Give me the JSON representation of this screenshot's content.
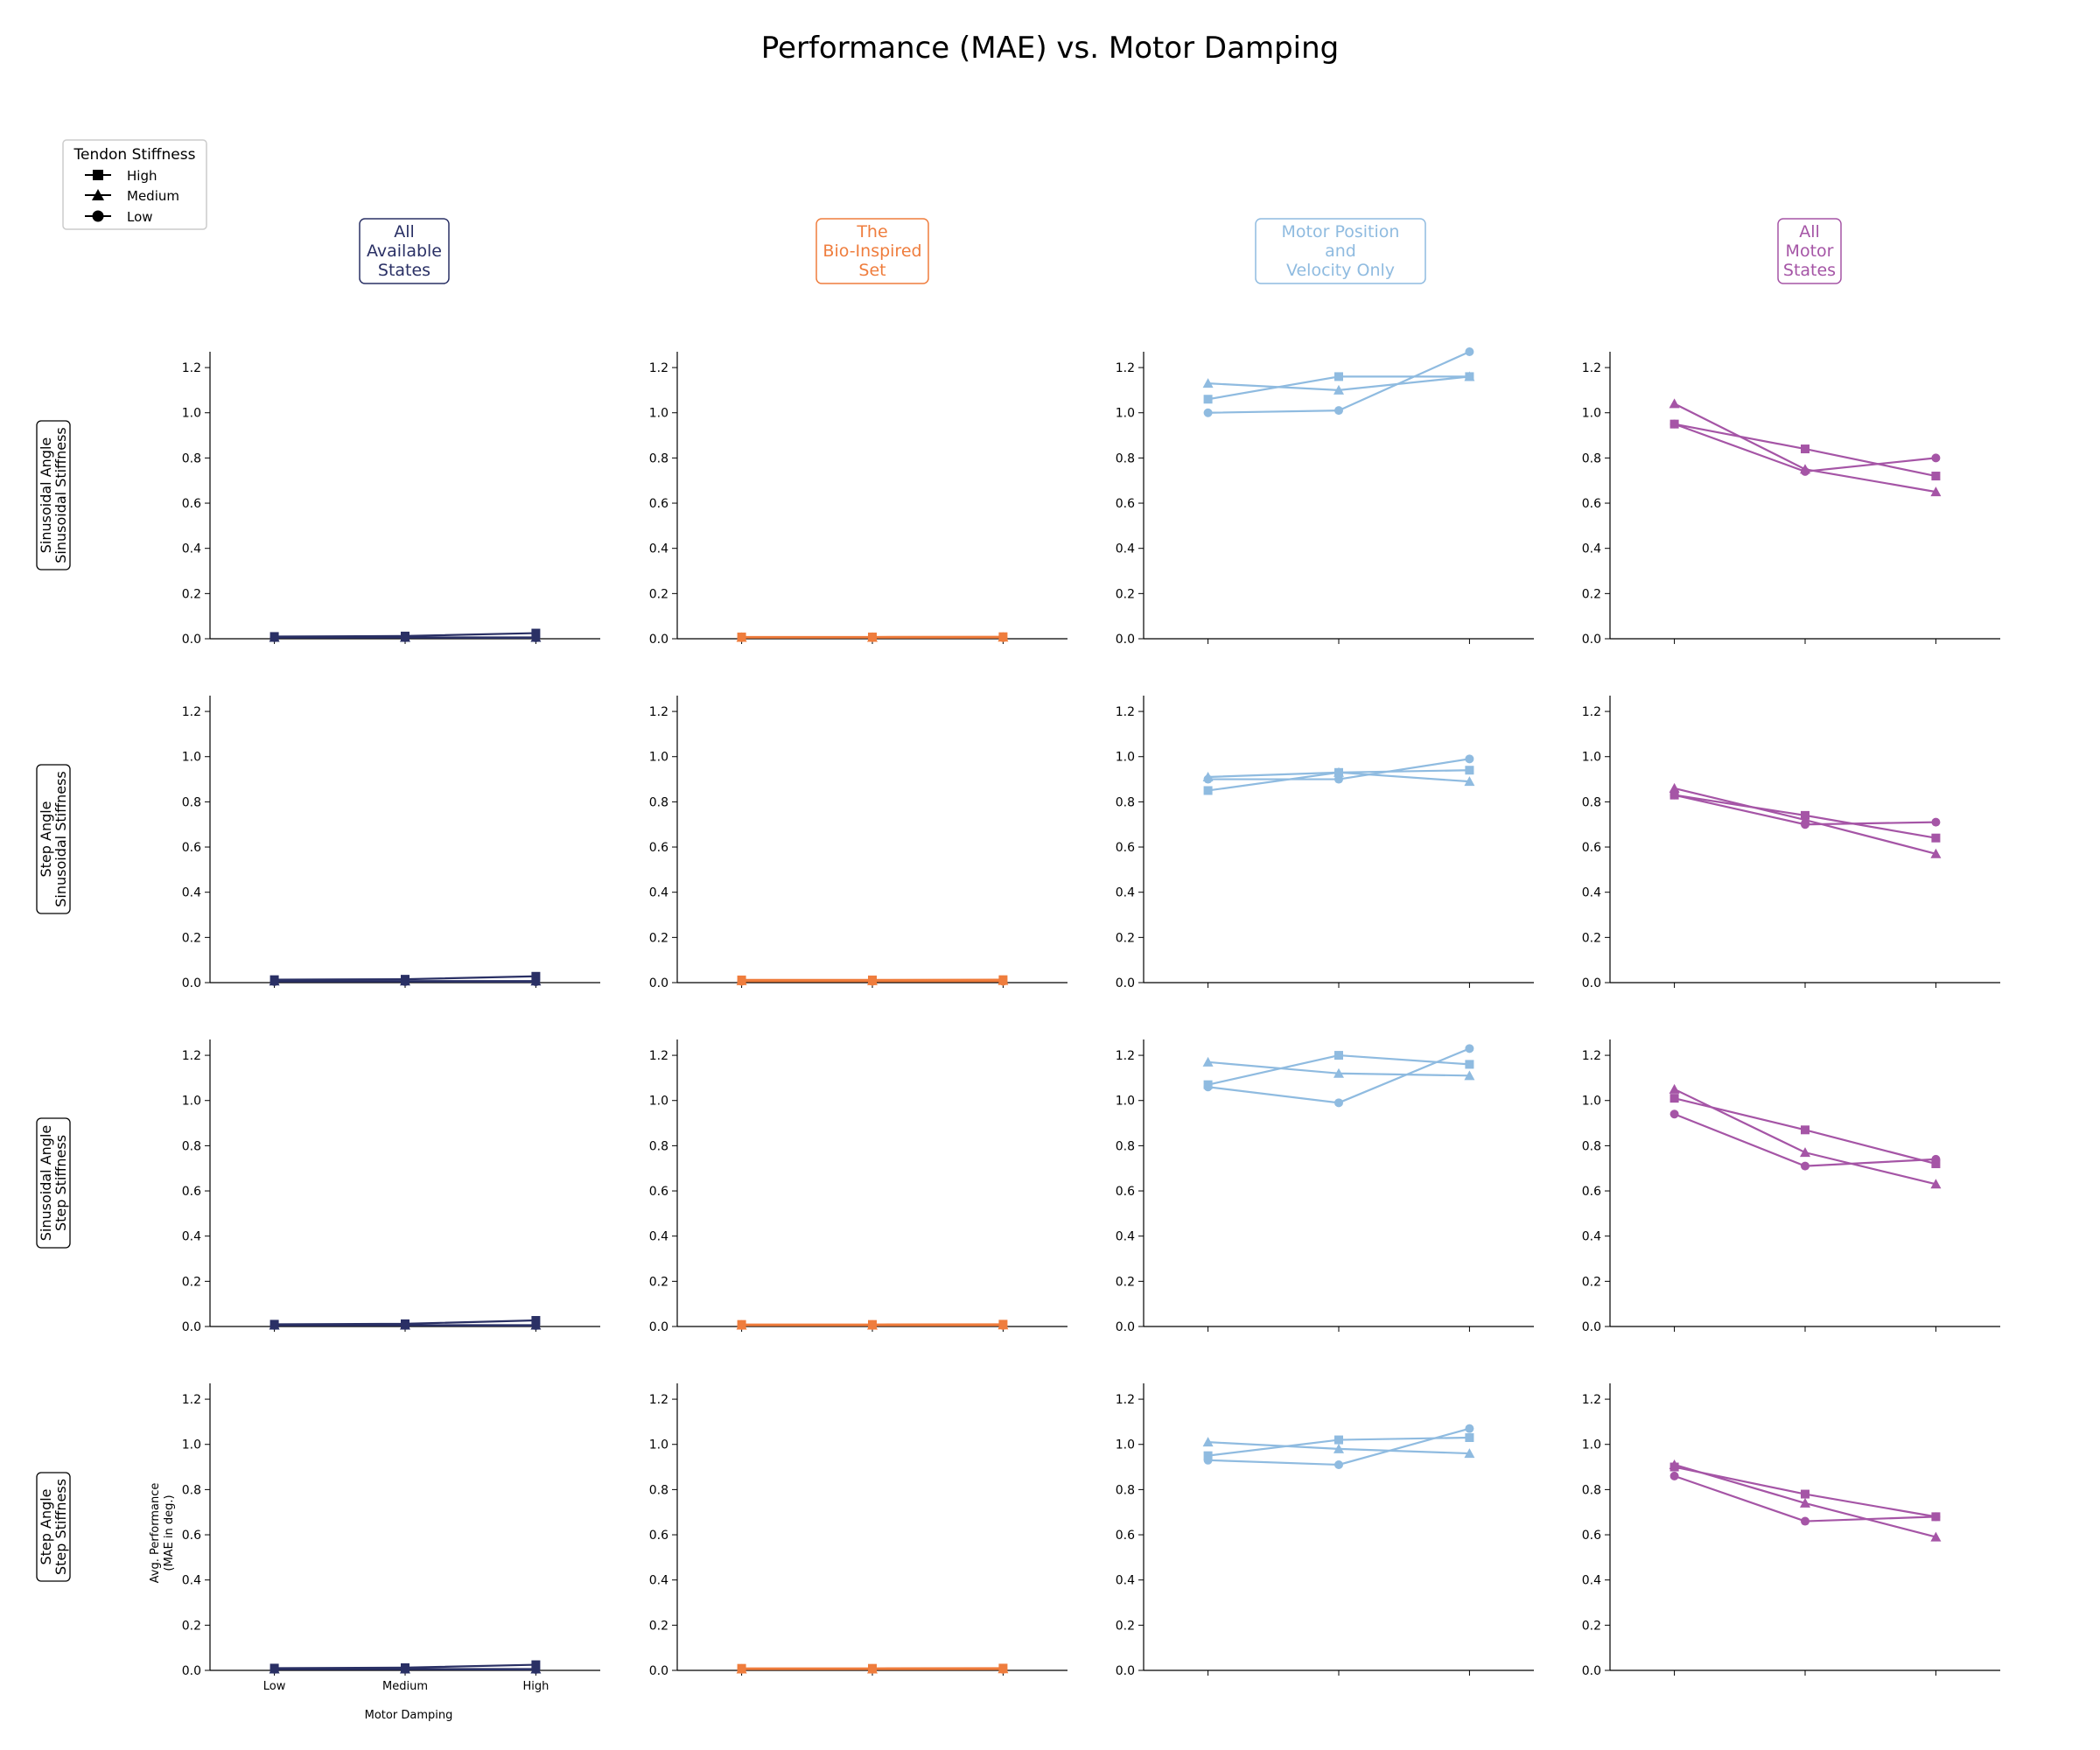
{
  "title": "Performance (MAE) vs. Motor Damping",
  "legend": {
    "title": "Tendon Stiffness",
    "items": [
      {
        "label": "High",
        "marker": "square"
      },
      {
        "label": "Medium",
        "marker": "triangle"
      },
      {
        "label": "Low",
        "marker": "circle"
      }
    ]
  },
  "column_headers": [
    {
      "lines": [
        "All",
        "Available",
        "States"
      ],
      "color": "#2a3065"
    },
    {
      "lines": [
        "The",
        "Bio-Inspired",
        "Set"
      ],
      "color": "#ef7d3d"
    },
    {
      "lines": [
        "Motor Position",
        "and",
        "Velocity Only"
      ],
      "color": "#8fbbe0"
    },
    {
      "lines": [
        "All",
        "Motor",
        "States"
      ],
      "color": "#a555a6"
    }
  ],
  "row_headers": [
    {
      "lines": [
        "Sinusoidal Angle",
        "Sinusoidal Stiffness"
      ]
    },
    {
      "lines": [
        "Step Angle",
        "Sinusoidal Stiffness"
      ]
    },
    {
      "lines": [
        "Sinusoidal Angle",
        "Step Stiffness"
      ]
    },
    {
      "lines": [
        "Step Angle",
        "Step Stiffness"
      ]
    }
  ],
  "axes_text": {
    "xlabel": "Motor Damping",
    "ylabel_lines": [
      "Avg. Performance",
      "(MAE in deg.)"
    ],
    "x_ticks": [
      "Low",
      "Medium",
      "High"
    ],
    "y_ticks": [
      "0.0",
      "0.2",
      "0.4",
      "0.6",
      "0.8",
      "1.0",
      "1.2"
    ]
  },
  "chart_data": {
    "type": "line",
    "categories": [
      "Low",
      "Medium",
      "High"
    ],
    "ylim": [
      0,
      1.27
    ],
    "grid": false,
    "legend_placement": "top-left",
    "series_keys": [
      "High",
      "Medium",
      "Low"
    ],
    "markers": {
      "High": "square",
      "Medium": "triangle",
      "Low": "circle"
    },
    "panels": [
      [
        {
          "High": [
            0.01,
            0.012,
            0.025
          ],
          "Medium": [
            0.006,
            0.006,
            0.006
          ],
          "Low": [
            0.005,
            0.005,
            0.004
          ]
        },
        {
          "High": [
            0.008,
            0.008,
            0.009
          ],
          "Medium": [
            0.006,
            0.006,
            0.007
          ],
          "Low": [
            0.005,
            0.005,
            0.005
          ]
        },
        {
          "High": [
            1.06,
            1.16,
            1.16
          ],
          "Medium": [
            1.13,
            1.1,
            1.16
          ],
          "Low": [
            1.0,
            1.01,
            1.27
          ]
        },
        {
          "High": [
            0.95,
            0.84,
            0.72
          ],
          "Medium": [
            1.04,
            0.75,
            0.65
          ],
          "Low": [
            0.95,
            0.74,
            0.8
          ]
        }
      ],
      [
        {
          "High": [
            0.013,
            0.015,
            0.028
          ],
          "Medium": [
            0.007,
            0.007,
            0.007
          ],
          "Low": [
            0.005,
            0.005,
            0.004
          ]
        },
        {
          "High": [
            0.012,
            0.012,
            0.013
          ],
          "Medium": [
            0.008,
            0.008,
            0.009
          ],
          "Low": [
            0.006,
            0.006,
            0.006
          ]
        },
        {
          "High": [
            0.85,
            0.93,
            0.94
          ],
          "Medium": [
            0.91,
            0.93,
            0.89
          ],
          "Low": [
            0.9,
            0.9,
            0.99
          ]
        },
        {
          "High": [
            0.83,
            0.74,
            0.64
          ],
          "Medium": [
            0.86,
            0.72,
            0.57
          ],
          "Low": [
            0.83,
            0.7,
            0.71
          ]
        }
      ],
      [
        {
          "High": [
            0.01,
            0.012,
            0.027
          ],
          "Medium": [
            0.006,
            0.006,
            0.006
          ],
          "Low": [
            0.005,
            0.005,
            0.004
          ]
        },
        {
          "High": [
            0.009,
            0.009,
            0.01
          ],
          "Medium": [
            0.006,
            0.006,
            0.007
          ],
          "Low": [
            0.005,
            0.005,
            0.005
          ]
        },
        {
          "High": [
            1.07,
            1.2,
            1.16
          ],
          "Medium": [
            1.17,
            1.12,
            1.11
          ],
          "Low": [
            1.06,
            0.99,
            1.23
          ]
        },
        {
          "High": [
            1.01,
            0.87,
            0.72
          ],
          "Medium": [
            1.05,
            0.77,
            0.63
          ],
          "Low": [
            0.94,
            0.71,
            0.74
          ]
        }
      ],
      [
        {
          "High": [
            0.01,
            0.012,
            0.025
          ],
          "Medium": [
            0.006,
            0.006,
            0.006
          ],
          "Low": [
            0.005,
            0.005,
            0.004
          ]
        },
        {
          "High": [
            0.009,
            0.009,
            0.01
          ],
          "Medium": [
            0.006,
            0.006,
            0.007
          ],
          "Low": [
            0.005,
            0.005,
            0.005
          ]
        },
        {
          "High": [
            0.95,
            1.02,
            1.03
          ],
          "Medium": [
            1.01,
            0.98,
            0.96
          ],
          "Low": [
            0.93,
            0.91,
            1.07
          ]
        },
        {
          "High": [
            0.9,
            0.78,
            0.68
          ],
          "Medium": [
            0.91,
            0.74,
            0.59
          ],
          "Low": [
            0.86,
            0.66,
            0.68
          ]
        }
      ]
    ]
  }
}
